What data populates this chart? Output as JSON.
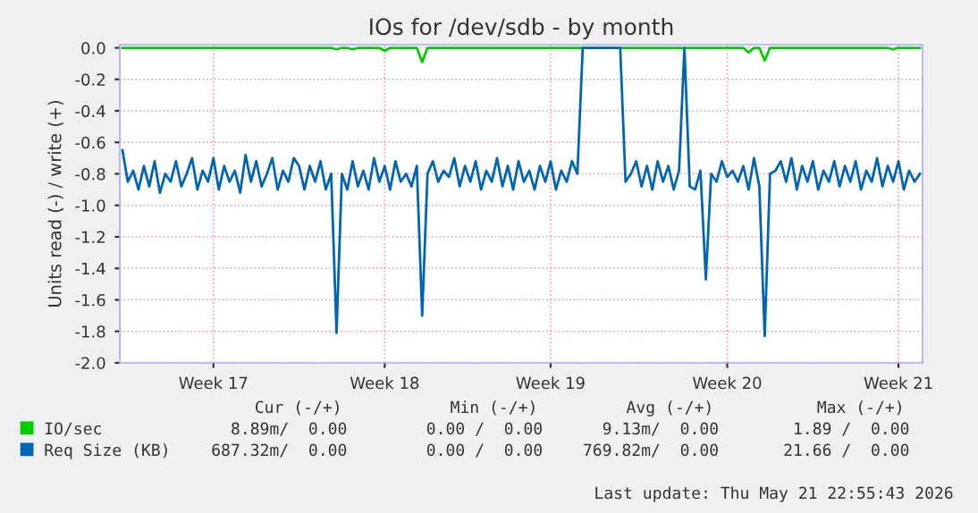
{
  "chart_data": {
    "type": "line",
    "title": "IOs for /dev/sdb - by month",
    "ylabel": "Units read (-) / write (+)",
    "categories": [
      null,
      null,
      null,
      null,
      null,
      null,
      null,
      null,
      null,
      null,
      null,
      null,
      null,
      null,
      null,
      null,
      null,
      "Week 17",
      null,
      null,
      null,
      null,
      null,
      null,
      null,
      null,
      null,
      null,
      null,
      null,
      null,
      null,
      null,
      null,
      null,
      null,
      null,
      null,
      null,
      null,
      null,
      null,
      null,
      null,
      null,
      null,
      null,
      null,
      null,
      "Week 18",
      null,
      null,
      null,
      null,
      null,
      null,
      null,
      null,
      null,
      null,
      null,
      null,
      null,
      null,
      null,
      null,
      null,
      null,
      null,
      null,
      null,
      null,
      null,
      null,
      null,
      null,
      null,
      null,
      null,
      null,
      "Week 19",
      null,
      null,
      null,
      null,
      null,
      null,
      null,
      null,
      null,
      null,
      null,
      null,
      null,
      null,
      null,
      null,
      null,
      null,
      null,
      null,
      null,
      null,
      null,
      null,
      null,
      null,
      null,
      null,
      null,
      null,
      null,
      null,
      "Week 20",
      null,
      null,
      null,
      null,
      null,
      null,
      null,
      null,
      null,
      null,
      null,
      null,
      null,
      null,
      null,
      null,
      null,
      null,
      null,
      null,
      null,
      null,
      null,
      null,
      null,
      null,
      null,
      null,
      null,
      null,
      null,
      "Week 21",
      null,
      null,
      null,
      null
    ],
    "series": [
      {
        "name": "IO/sec",
        "color": "#00cc00",
        "values": [
          0,
          0,
          0,
          0,
          0,
          0,
          0,
          0,
          0,
          0,
          0,
          0,
          0,
          0,
          0,
          0,
          0,
          0,
          0,
          0,
          0,
          0,
          0,
          0,
          0,
          0,
          0,
          0,
          0,
          0,
          0,
          0,
          0,
          0,
          0,
          0,
          0,
          0,
          0,
          0,
          -0.01,
          0,
          0,
          -0.01,
          0,
          0,
          0,
          0,
          0,
          -0.02,
          0,
          0,
          0,
          0,
          0,
          0,
          -0.09,
          0,
          0,
          0,
          0,
          0,
          0,
          0,
          0,
          0,
          0,
          0,
          0,
          0,
          0,
          0,
          0,
          0,
          0,
          0,
          0,
          0,
          0,
          0,
          0,
          0,
          0,
          0,
          0,
          0,
          0,
          0,
          0,
          0,
          0,
          0,
          0,
          0,
          0,
          0,
          0,
          0,
          0,
          0,
          0,
          0,
          0,
          0,
          0,
          0,
          0,
          0,
          0,
          0,
          0,
          0,
          0,
          0,
          0,
          0,
          0,
          -0.03,
          0,
          0,
          -0.08,
          0,
          0,
          0,
          0,
          0,
          0,
          0,
          0,
          0,
          0,
          0,
          0,
          0,
          0,
          0,
          0,
          0,
          0,
          0,
          0,
          0,
          0,
          0,
          -0.01,
          0,
          0,
          0,
          0,
          0
        ]
      },
      {
        "name": "Req Size (KB)",
        "color": "#0066b3",
        "values": [
          -0.65,
          -0.85,
          -0.78,
          -0.9,
          -0.75,
          -0.88,
          -0.72,
          -0.92,
          -0.8,
          -0.85,
          -0.72,
          -0.88,
          -0.8,
          -0.7,
          -0.9,
          -0.78,
          -0.85,
          -0.7,
          -0.9,
          -0.75,
          -0.85,
          -0.78,
          -0.92,
          -0.68,
          -0.85,
          -0.72,
          -0.88,
          -0.8,
          -0.7,
          -0.9,
          -0.78,
          -0.85,
          -0.7,
          -0.75,
          -0.9,
          -0.75,
          -0.85,
          -0.72,
          -0.9,
          -0.8,
          -1.81,
          -0.8,
          -0.9,
          -0.72,
          -0.88,
          -0.78,
          -0.9,
          -0.7,
          -0.85,
          -0.75,
          -0.9,
          -0.72,
          -0.85,
          -0.8,
          -0.88,
          -0.75,
          -1.7,
          -0.8,
          -0.72,
          -0.85,
          -0.78,
          -0.82,
          -0.7,
          -0.88,
          -0.75,
          -0.85,
          -0.72,
          -0.9,
          -0.78,
          -0.85,
          -0.7,
          -0.88,
          -0.75,
          -0.9,
          -0.72,
          -0.85,
          -0.78,
          -0.9,
          -0.75,
          -0.85,
          -0.72,
          -0.9,
          -0.78,
          -0.85,
          -0.72,
          -0.8,
          0,
          0,
          0,
          0,
          0,
          0,
          0,
          0,
          -0.85,
          -0.8,
          -0.72,
          -0.88,
          -0.75,
          -0.9,
          -0.72,
          -0.85,
          -0.75,
          -0.9,
          -0.78,
          0,
          -0.88,
          -0.9,
          -0.78,
          -1.47,
          -0.8,
          -0.85,
          -0.72,
          -0.82,
          -0.78,
          -0.85,
          -0.75,
          -0.9,
          -0.7,
          -0.88,
          -1.83,
          -0.8,
          -0.78,
          -0.72,
          -0.85,
          -0.7,
          -0.9,
          -0.75,
          -0.85,
          -0.72,
          -0.9,
          -0.78,
          -0.85,
          -0.72,
          -0.88,
          -0.75,
          -0.85,
          -0.72,
          -0.9,
          -0.78,
          -0.85,
          -0.7,
          -0.88,
          -0.75,
          -0.85,
          -0.72,
          -0.9,
          -0.78,
          -0.85,
          -0.8
        ]
      }
    ],
    "ylim": [
      -2.0,
      0.02
    ],
    "yticks": [
      {
        "value": -2.0,
        "label": "-2.0"
      },
      {
        "value": -1.8,
        "label": "-1.8"
      },
      {
        "value": -1.6,
        "label": "-1.6"
      },
      {
        "value": -1.4,
        "label": "-1.4"
      },
      {
        "value": -1.2,
        "label": "-1.2"
      },
      {
        "value": -1.0,
        "label": "-1.0"
      },
      {
        "value": -0.8,
        "label": "-0.8"
      },
      {
        "value": -0.6,
        "label": "-0.6"
      },
      {
        "value": -0.4,
        "label": "-0.4"
      },
      {
        "value": -0.2,
        "label": "-0.2"
      },
      {
        "value": 0.0,
        "label": "0.0"
      }
    ],
    "grid": true,
    "line_style": "solid",
    "marker": "none",
    "legend": "bottom",
    "annotations": [
      "Cur (-/+)",
      "Min (-/+)",
      "Avg (-/+)",
      "Max (-/+)",
      "8.89m/  0.00",
      "0.00 /  0.00",
      "9.13m/  0.00",
      "1.89 /  0.00",
      "687.32m/  0.00",
      "0.00 /  0.00",
      "769.82m/  0.00",
      "21.66 /  0.00",
      "Last update: Thu May 21 22:55:43 2026"
    ]
  }
}
